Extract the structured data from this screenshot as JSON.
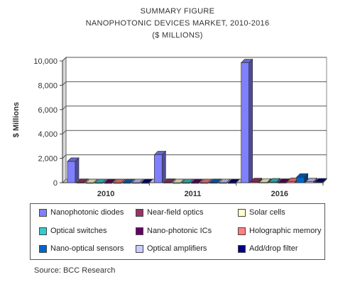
{
  "chart_data": {
    "type": "bar",
    "title_lines": [
      "SUMMARY FIGURE",
      "NANOPHOTONIC DEVICES MARKET, 2010-2016",
      "($ MILLIONS)"
    ],
    "ylabel": "$ Millions",
    "xlabel": "",
    "ylim": [
      0,
      10000
    ],
    "yticks": [
      "0",
      "2,000",
      "4,000",
      "6,000",
      "8,000",
      "10,000"
    ],
    "ytick_values": [
      0,
      2000,
      4000,
      6000,
      8000,
      10000
    ],
    "categories": [
      "2010",
      "2011",
      "2016"
    ],
    "grid": true,
    "legend_position": "bottom",
    "series": [
      {
        "name": "Nanophotonic diodes",
        "color": "#8080ff",
        "values": [
          1750,
          2300,
          9850
        ]
      },
      {
        "name": "Near-field optics",
        "color": "#993366",
        "values": [
          25,
          30,
          80
        ]
      },
      {
        "name": "Solar cells",
        "color": "#ffffcc",
        "values": [
          0,
          0,
          40
        ]
      },
      {
        "name": "Optical switches",
        "color": "#33cccc",
        "values": [
          5,
          8,
          60
        ]
      },
      {
        "name": "Nano-photonic ICs",
        "color": "#660066",
        "values": [
          3,
          5,
          30
        ]
      },
      {
        "name": "Holographic memory",
        "color": "#ff8080",
        "values": [
          2,
          4,
          100
        ]
      },
      {
        "name": "Nano-optical sensors",
        "color": "#0066cc",
        "values": [
          10,
          15,
          450
        ]
      },
      {
        "name": "Optical amplifiers",
        "color": "#ccccff",
        "values": [
          5,
          8,
          90
        ]
      },
      {
        "name": "Add/drop filter",
        "color": "#000080",
        "values": [
          3,
          5,
          60
        ]
      }
    ]
  },
  "source": "Source: BCC Research"
}
